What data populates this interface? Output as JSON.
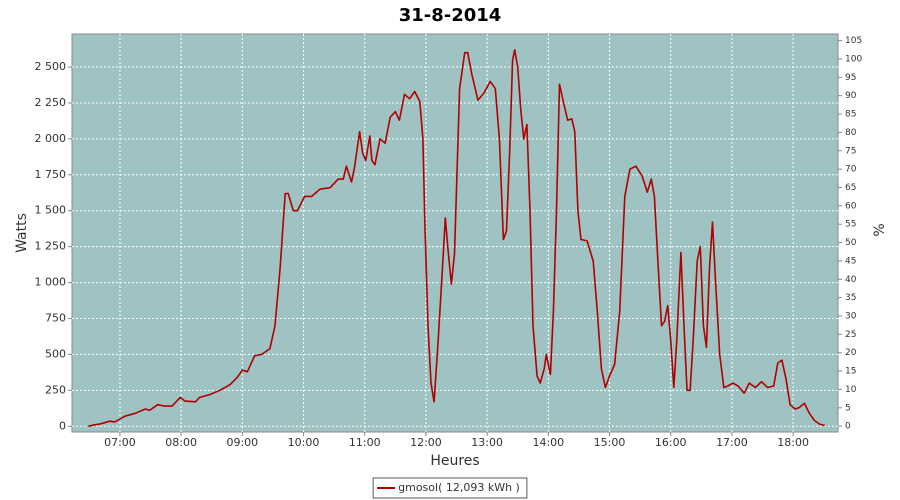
{
  "chart_data": {
    "type": "line",
    "title": "31-8-2014",
    "x_label": "Heures",
    "y_label": "Watts",
    "y2_label": "%",
    "x": [
      "06:29",
      "06:35",
      "06:40",
      "06:45",
      "06:50",
      "06:55",
      "07:00",
      "07:05",
      "07:15",
      "07:25",
      "07:29",
      "07:37",
      "07:44",
      "07:51",
      "07:59",
      "08:04",
      "08:14",
      "08:18",
      "08:28",
      "08:38",
      "08:48",
      "08:55",
      "09:00",
      "09:05",
      "09:12",
      "09:19",
      "09:27",
      "09:32",
      "09:37",
      "09:42",
      "09:45",
      "09:50",
      "09:54",
      "10:01",
      "10:08",
      "10:16",
      "10:26",
      "10:34",
      "10:39",
      "10:42",
      "10:47",
      "10:50",
      "10:55",
      "10:58",
      "11:01",
      "11:05",
      "11:07",
      "11:10",
      "11:15",
      "11:20",
      "11:25",
      "11:30",
      "11:34",
      "11:39",
      "11:44",
      "11:49",
      "11:54",
      "11:57",
      "11:59",
      "12:02",
      "12:05",
      "12:08",
      "12:12",
      "12:17",
      "12:19",
      "12:22",
      "12:25",
      "12:28",
      "12:33",
      "12:38",
      "12:41",
      "12:45",
      "12:51",
      "12:57",
      "13:03",
      "13:08",
      "13:12",
      "13:16",
      "13:19",
      "13:22",
      "13:25",
      "13:27",
      "13:30",
      "13:33",
      "13:36",
      "13:39",
      "13:42",
      "13:45",
      "13:49",
      "13:52",
      "13:56",
      "13:58",
      "14:02",
      "14:05",
      "14:08",
      "14:11",
      "14:15",
      "14:19",
      "14:23",
      "14:26",
      "14:29",
      "14:32",
      "14:38",
      "14:44",
      "14:48",
      "14:52",
      "14:56",
      "15:00",
      "15:05",
      "15:10",
      "15:15",
      "15:20",
      "15:26",
      "15:32",
      "15:37",
      "15:41",
      "15:44",
      "15:47",
      "15:51",
      "15:54",
      "15:57",
      "16:00",
      "16:03",
      "16:06",
      "16:10",
      "16:13",
      "16:16",
      "16:19",
      "16:22",
      "16:26",
      "16:29",
      "16:32",
      "16:35",
      "16:38",
      "16:41",
      "16:44",
      "16:48",
      "16:52",
      "16:56",
      "17:01",
      "17:06",
      "17:12",
      "17:17",
      "17:23",
      "17:29",
      "17:35",
      "17:41",
      "17:45",
      "17:49",
      "17:53",
      "17:57",
      "18:02",
      "18:06",
      "18:11",
      "18:16",
      "18:21",
      "18:26",
      "18:31"
    ],
    "series": [
      {
        "name": "gmosol( 12,093 kWh )",
        "color": "#b00000",
        "values": [
          0,
          10,
          15,
          25,
          35,
          30,
          50,
          70,
          90,
          120,
          110,
          150,
          140,
          140,
          200,
          175,
          170,
          200,
          220,
          250,
          290,
          340,
          390,
          380,
          490,
          500,
          540,
          700,
          1100,
          1620,
          1620,
          1500,
          1500,
          1600,
          1600,
          1650,
          1660,
          1720,
          1720,
          1810,
          1700,
          1800,
          2050,
          1900,
          1850,
          2020,
          1850,
          1820,
          2000,
          1970,
          2150,
          2190,
          2130,
          2310,
          2280,
          2330,
          2260,
          2000,
          1400,
          700,
          300,
          170,
          600,
          1200,
          1450,
          1200,
          990,
          1200,
          2350,
          2600,
          2600,
          2450,
          2270,
          2320,
          2400,
          2350,
          2000,
          1300,
          1360,
          1900,
          2550,
          2620,
          2500,
          2200,
          2000,
          2100,
          1500,
          700,
          350,
          300,
          400,
          500,
          360,
          800,
          1500,
          2380,
          2250,
          2130,
          2140,
          2050,
          1500,
          1300,
          1290,
          1150,
          800,
          400,
          270,
          350,
          430,
          800,
          1600,
          1790,
          1810,
          1740,
          1630,
          1720,
          1600,
          1200,
          700,
          730,
          840,
          600,
          270,
          600,
          1210,
          700,
          250,
          250,
          600,
          1150,
          1250,
          700,
          550,
          1100,
          1420,
          1000,
          500,
          270,
          280,
          300,
          280,
          230,
          300,
          270,
          310,
          270,
          280,
          440,
          460,
          330,
          150,
          120,
          130,
          160,
          90,
          40,
          15,
          5
        ]
      }
    ],
    "xlim": [
      "06:13",
      "18:44"
    ],
    "xticks": [
      "07:00",
      "08:00",
      "09:00",
      "10:00",
      "11:00",
      "12:00",
      "13:00",
      "14:00",
      "15:00",
      "16:00",
      "17:00",
      "18:00"
    ],
    "ylim": [
      -40,
      2730
    ],
    "yticks": [
      0,
      250,
      500,
      750,
      {
        "value": 1000,
        "label": "1 000"
      },
      {
        "value": 1250,
        "label": "1 250"
      },
      {
        "value": 1500,
        "label": "1 500"
      },
      {
        "value": 1750,
        "label": "1 750"
      },
      {
        "value": 2000,
        "label": "2 000"
      },
      {
        "value": 2250,
        "label": "2 250"
      },
      {
        "value": 2500,
        "label": "2 500"
      }
    ],
    "y2lim": [
      -1.6,
      106.8
    ],
    "y2ticks": [
      0,
      5,
      10,
      15,
      20,
      25,
      30,
      35,
      40,
      45,
      50,
      55,
      60,
      65,
      70,
      75,
      80,
      85,
      90,
      95,
      100,
      105
    ],
    "grid": true,
    "background": "#9fc3c3",
    "legend": "bottom"
  }
}
